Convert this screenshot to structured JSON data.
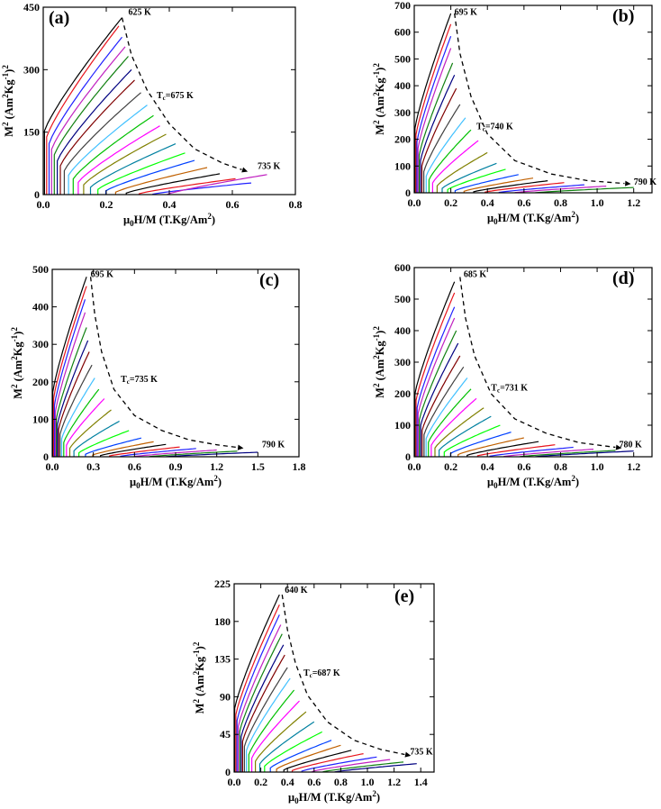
{
  "chart_data": [
    {
      "type": "line",
      "panel_label": "(a)",
      "xlabel": "μ0H/M (T.Kg/Am2)",
      "xlabel_parts": {
        "mu": "μ",
        "sub": "0",
        "main": "H/M (T.Kg/Am",
        "sup": "2",
        "close": ")"
      },
      "ylabel_parts": {
        "main": "M",
        "sup1": "2",
        "unit": " (Am",
        "sup2": "2",
        "kg": "Kg",
        "sup3": "-1",
        "close": ")",
        "sup4": "2"
      },
      "xlim": [
        0,
        0.8
      ],
      "ylim": [
        0,
        450
      ],
      "xticks": [
        0.0,
        0.2,
        0.4,
        0.6,
        0.8
      ],
      "xtick_labels": [
        "0.0",
        "0.2",
        "0.4",
        "0.6",
        "0.8"
      ],
      "yticks": [
        0,
        150,
        300,
        450
      ],
      "ytick_labels": [
        "0",
        "150",
        "300",
        "450"
      ],
      "isotherm_ends": [
        [
          0.25,
          425
        ],
        [
          0.24,
          405
        ],
        [
          0.25,
          378
        ],
        [
          0.26,
          355
        ],
        [
          0.27,
          332
        ],
        [
          0.28,
          300
        ],
        [
          0.29,
          275
        ],
        [
          0.31,
          245
        ],
        [
          0.33,
          215
        ],
        [
          0.35,
          190
        ],
        [
          0.37,
          165
        ],
        [
          0.39,
          145
        ],
        [
          0.42,
          122
        ],
        [
          0.45,
          100
        ],
        [
          0.48,
          82
        ],
        [
          0.52,
          65
        ],
        [
          0.56,
          50
        ],
        [
          0.61,
          38
        ],
        [
          0.66,
          28
        ],
        [
          0.71,
          48
        ]
      ],
      "envelope": [
        [
          0.25,
          425
        ],
        [
          0.28,
          335
        ],
        [
          0.33,
          250
        ],
        [
          0.4,
          170
        ],
        [
          0.48,
          110
        ],
        [
          0.57,
          75
        ],
        [
          0.63,
          60
        ]
      ],
      "annotations": [
        {
          "text": "625 K",
          "x": 0.27,
          "y": 432
        },
        {
          "text": "Tc=675 K",
          "tc": true,
          "prefix": "T",
          "sub": "c",
          "rest": "=675 K",
          "x": 0.36,
          "y": 232
        },
        {
          "text": "735 K",
          "x": 0.68,
          "y": 62
        }
      ]
    },
    {
      "type": "line",
      "panel_label": "(b)",
      "xlabel": "μ0H/M (T.Kg/Am2)",
      "xlabel_parts": {
        "mu": "μ",
        "sub": "0",
        "main": "H/M (T.Kg/Am",
        "sup": "2",
        "close": ")"
      },
      "ylabel_parts": {
        "main": "M",
        "sup1": "2",
        "unit": " (Am",
        "sup2": "2",
        "kg": "Kg",
        "sup3": "-1",
        "close": ")",
        "sup4": "2"
      },
      "xlim": [
        0,
        1.3
      ],
      "ylim": [
        0,
        700
      ],
      "xticks": [
        0.0,
        0.2,
        0.4,
        0.6,
        0.8,
        1.0,
        1.2
      ],
      "xtick_labels": [
        "0.0",
        "0.2",
        "0.4",
        "0.6",
        "0.8",
        "1.0",
        "1.2"
      ],
      "yticks": [
        0,
        100,
        200,
        300,
        400,
        500,
        600,
        700
      ],
      "ytick_labels": [
        "0",
        "100",
        "200",
        "300",
        "400",
        "500",
        "600",
        "700"
      ],
      "isotherm_ends": [
        [
          0.2,
          670
        ],
        [
          0.2,
          630
        ],
        [
          0.2,
          585
        ],
        [
          0.2,
          540
        ],
        [
          0.21,
          485
        ],
        [
          0.22,
          440
        ],
        [
          0.23,
          390
        ],
        [
          0.25,
          330
        ],
        [
          0.28,
          280
        ],
        [
          0.31,
          235
        ],
        [
          0.35,
          195
        ],
        [
          0.4,
          150
        ],
        [
          0.45,
          110
        ],
        [
          0.5,
          88
        ],
        [
          0.57,
          68
        ],
        [
          0.65,
          55
        ],
        [
          0.73,
          45
        ],
        [
          0.82,
          38
        ],
        [
          0.93,
          30
        ],
        [
          1.05,
          25
        ],
        [
          1.2,
          20
        ]
      ],
      "envelope": [
        [
          0.22,
          670
        ],
        [
          0.25,
          520
        ],
        [
          0.31,
          360
        ],
        [
          0.4,
          220
        ],
        [
          0.55,
          120
        ],
        [
          0.75,
          70
        ],
        [
          0.95,
          45
        ],
        [
          1.15,
          35
        ]
      ],
      "annotations": [
        {
          "text": "695 K",
          "x": 0.22,
          "y": 665
        },
        {
          "text": "Tc=740 K",
          "tc": true,
          "prefix": "T",
          "sub": "c",
          "rest": "=740 K",
          "x": 0.34,
          "y": 238
        },
        {
          "text": "790 K",
          "x": 1.2,
          "y": 30
        }
      ]
    },
    {
      "type": "line",
      "panel_label": "(c)",
      "xlabel": "μ0H/M (T.Kg/Am2)",
      "xlabel_parts": {
        "mu": "μ",
        "sub": "0",
        "main": "H/M (T.Kg/Am",
        "sup": "2",
        "close": ")"
      },
      "ylabel_parts": {
        "main": "M",
        "sup1": "2",
        "unit": " (Am",
        "sup2": "2",
        "kg": "Kg",
        "sup3": "-1",
        "close": ")",
        "sup4": "2"
      },
      "xlim": [
        0,
        1.8
      ],
      "ylim": [
        0,
        500
      ],
      "xticks": [
        0.0,
        0.3,
        0.6,
        0.9,
        1.2,
        1.5,
        1.8
      ],
      "xtick_labels": [
        "0.0",
        "0.3",
        "0.6",
        "0.9",
        "1.2",
        "1.5",
        "1.8"
      ],
      "yticks": [
        0,
        100,
        200,
        300,
        400,
        500
      ],
      "ytick_labels": [
        "0",
        "100",
        "200",
        "300",
        "400",
        "500"
      ],
      "isotherm_ends": [
        [
          0.25,
          480
        ],
        [
          0.25,
          455
        ],
        [
          0.24,
          420
        ],
        [
          0.24,
          385
        ],
        [
          0.25,
          345
        ],
        [
          0.26,
          310
        ],
        [
          0.27,
          280
        ],
        [
          0.29,
          245
        ],
        [
          0.31,
          210
        ],
        [
          0.34,
          180
        ],
        [
          0.38,
          155
        ],
        [
          0.43,
          125
        ],
        [
          0.49,
          95
        ],
        [
          0.56,
          70
        ],
        [
          0.65,
          50
        ],
        [
          0.74,
          40
        ],
        [
          0.83,
          33
        ],
        [
          0.93,
          26
        ],
        [
          1.05,
          22
        ],
        [
          1.2,
          18
        ],
        [
          1.35,
          15
        ],
        [
          1.5,
          12
        ]
      ],
      "envelope": [
        [
          0.28,
          480
        ],
        [
          0.31,
          380
        ],
        [
          0.36,
          280
        ],
        [
          0.45,
          180
        ],
        [
          0.6,
          110
        ],
        [
          0.8,
          70
        ],
        [
          1.0,
          45
        ],
        [
          1.2,
          32
        ],
        [
          1.35,
          25
        ]
      ],
      "annotations": [
        {
          "text": "695 K",
          "x": 0.28,
          "y": 480
        },
        {
          "text": "Tc=735 K",
          "tc": true,
          "prefix": "T",
          "sub": "c",
          "rest": "=735 K",
          "x": 0.5,
          "y": 200
        },
        {
          "text": "790 K",
          "x": 1.53,
          "y": 25
        }
      ]
    },
    {
      "type": "line",
      "panel_label": "(d)",
      "xlabel": "μ0H/M (T.Kg/Am2)",
      "xlabel_parts": {
        "mu": "μ",
        "sub": "0",
        "main": "H/M (T.Kg/Am",
        "sup": "2",
        "close": ")"
      },
      "ylabel_parts": {
        "main": "M",
        "sup1": "2",
        "unit": " (Am",
        "sup2": "2",
        "kg": "Kg",
        "sup3": "-1",
        "close": ")",
        "sup4": "2"
      },
      "xlim": [
        0,
        1.3
      ],
      "ylim": [
        0,
        600
      ],
      "xticks": [
        0.0,
        0.2,
        0.4,
        0.6,
        0.8,
        1.0,
        1.2
      ],
      "xtick_labels": [
        "0.0",
        "0.2",
        "0.4",
        "0.6",
        "0.8",
        "1.0",
        "1.2"
      ],
      "yticks": [
        0,
        100,
        200,
        300,
        400,
        500,
        600
      ],
      "ytick_labels": [
        "0",
        "100",
        "200",
        "300",
        "400",
        "500",
        "600"
      ],
      "isotherm_ends": [
        [
          0.22,
          555
        ],
        [
          0.22,
          520
        ],
        [
          0.22,
          475
        ],
        [
          0.22,
          440
        ],
        [
          0.23,
          400
        ],
        [
          0.24,
          360
        ],
        [
          0.25,
          320
        ],
        [
          0.27,
          285
        ],
        [
          0.29,
          250
        ],
        [
          0.31,
          215
        ],
        [
          0.34,
          185
        ],
        [
          0.38,
          155
        ],
        [
          0.42,
          128
        ],
        [
          0.47,
          100
        ],
        [
          0.53,
          78
        ],
        [
          0.6,
          60
        ],
        [
          0.68,
          48
        ],
        [
          0.77,
          38
        ],
        [
          0.87,
          30
        ],
        [
          0.98,
          24
        ],
        [
          1.1,
          20
        ],
        [
          1.2,
          18
        ]
      ],
      "envelope": [
        [
          0.25,
          570
        ],
        [
          0.28,
          440
        ],
        [
          0.33,
          320
        ],
        [
          0.42,
          200
        ],
        [
          0.55,
          120
        ],
        [
          0.72,
          75
        ],
        [
          0.9,
          45
        ],
        [
          1.1,
          30
        ]
      ],
      "annotations": [
        {
          "text": "685 K",
          "x": 0.27,
          "y": 570
        },
        {
          "text": "Tc=731 K",
          "tc": true,
          "prefix": "T",
          "sub": "c",
          "rest": "=731 K",
          "x": 0.42,
          "y": 210
        },
        {
          "text": "780 K",
          "x": 1.12,
          "y": 30
        }
      ]
    },
    {
      "type": "line",
      "panel_label": "(e)",
      "xlabel": "μ0H/M (T.Kg/Am2)",
      "xlabel_parts": {
        "mu": "μ",
        "sub": "0",
        "main": "H/M (T.Kg/Am",
        "sup": "2",
        "close": ")"
      },
      "ylabel_parts": {
        "main": "M",
        "sup1": "2",
        "unit": " (Am",
        "sup2": "2",
        "kg": "Kg",
        "sup3": "-1",
        "close": ")",
        "sup4": "2"
      },
      "xlim": [
        0,
        1.5
      ],
      "ylim": [
        0,
        225
      ],
      "xticks": [
        0.0,
        0.2,
        0.4,
        0.6,
        0.8,
        1.0,
        1.2,
        1.4
      ],
      "xtick_labels": [
        "0.0",
        "0.2",
        "0.4",
        "0.6",
        "0.8",
        "1.0",
        "1.2",
        "1.4"
      ],
      "yticks": [
        0,
        45,
        90,
        135,
        180,
        225
      ],
      "ytick_labels": [
        "0",
        "45",
        "90",
        "135",
        "180",
        "225"
      ],
      "isotherm_ends": [
        [
          0.34,
          212
        ],
        [
          0.34,
          200
        ],
        [
          0.34,
          188
        ],
        [
          0.35,
          176
        ],
        [
          0.36,
          165
        ],
        [
          0.37,
          152
        ],
        [
          0.38,
          140
        ],
        [
          0.4,
          125
        ],
        [
          0.42,
          112
        ],
        [
          0.45,
          98
        ],
        [
          0.49,
          85
        ],
        [
          0.54,
          72
        ],
        [
          0.6,
          60
        ],
        [
          0.66,
          48
        ],
        [
          0.73,
          38
        ],
        [
          0.8,
          32
        ],
        [
          0.88,
          26
        ],
        [
          0.97,
          22
        ],
        [
          1.07,
          18
        ],
        [
          1.17,
          15
        ],
        [
          1.27,
          12
        ],
        [
          1.37,
          10
        ]
      ],
      "envelope": [
        [
          0.36,
          212
        ],
        [
          0.4,
          170
        ],
        [
          0.46,
          130
        ],
        [
          0.55,
          92
        ],
        [
          0.7,
          60
        ],
        [
          0.9,
          38
        ],
        [
          1.1,
          27
        ],
        [
          1.28,
          21
        ]
      ],
      "annotations": [
        {
          "text": "640 K",
          "x": 0.38,
          "y": 214
        },
        {
          "text": "Tc=687 K",
          "tc": true,
          "prefix": "T",
          "sub": "c",
          "rest": "=687 K",
          "x": 0.52,
          "y": 115
        },
        {
          "text": "735 K",
          "x": 1.32,
          "y": 21
        }
      ]
    }
  ],
  "colors": [
    "#000000",
    "#e8141c",
    "#2020ff",
    "#c020c0",
    "#108010",
    "#000080",
    "#800000",
    "#404040",
    "#40c0ff",
    "#00c000",
    "#ff00ff",
    "#808000",
    "#0080a0",
    "#00ff00",
    "#0040ff",
    "#c06000"
  ],
  "envelope_color": "#000000"
}
